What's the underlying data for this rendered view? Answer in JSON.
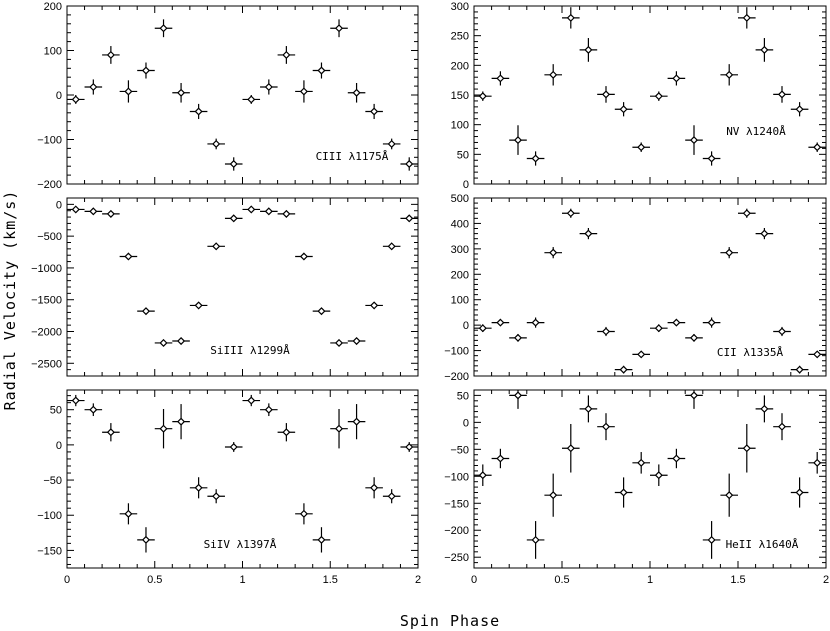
{
  "figure": {
    "xlabel": "Spin Phase",
    "ylabel": "Radial Velocity (km/s)"
  },
  "chart_data": [
    {
      "type": "scatter",
      "label": "CIII λ1175Å",
      "xlim": [
        0,
        2
      ],
      "ylim": [
        -200,
        200
      ],
      "yticks": [
        -200,
        -100,
        0,
        100,
        200
      ],
      "x": [
        0.05,
        0.15,
        0.25,
        0.35,
        0.45,
        0.55,
        0.65,
        0.75,
        0.85,
        0.95,
        1.05,
        1.15,
        1.25,
        1.35,
        1.45,
        1.55,
        1.65,
        1.75,
        1.85,
        1.95
      ],
      "y": [
        -10,
        18,
        90,
        8,
        55,
        150,
        5,
        -37,
        -110,
        -155,
        -10,
        18,
        90,
        8,
        55,
        150,
        5,
        -37,
        -110,
        -155
      ],
      "yerr": [
        10,
        17,
        20,
        25,
        18,
        20,
        22,
        17,
        12,
        15,
        10,
        17,
        20,
        25,
        18,
        20,
        22,
        17,
        12,
        15
      ]
    },
    {
      "type": "scatter",
      "label": "NV λ1240Å",
      "xlim": [
        0,
        2
      ],
      "ylim": [
        0,
        300
      ],
      "yticks": [
        0,
        50,
        100,
        150,
        200,
        250,
        300
      ],
      "x": [
        0.05,
        0.15,
        0.25,
        0.35,
        0.45,
        0.55,
        0.65,
        0.75,
        0.85,
        0.95,
        1.05,
        1.15,
        1.25,
        1.35,
        1.45,
        1.55,
        1.65,
        1.75,
        1.85,
        1.95
      ],
      "y": [
        148,
        178,
        74,
        43,
        184,
        280,
        226,
        151,
        126,
        62,
        148,
        178,
        74,
        43,
        184,
        280,
        226,
        151,
        126,
        62
      ],
      "yerr": [
        8,
        12,
        25,
        12,
        18,
        18,
        20,
        14,
        12,
        8,
        8,
        12,
        25,
        12,
        18,
        18,
        20,
        14,
        12,
        8
      ]
    },
    {
      "type": "scatter",
      "label": "SiIII λ1299Å",
      "xlim": [
        0,
        2
      ],
      "ylim": [
        -2700,
        100
      ],
      "yticks": [
        -2500,
        -2000,
        -1500,
        -1000,
        -500,
        0
      ],
      "x": [
        0.05,
        0.15,
        0.25,
        0.35,
        0.45,
        0.55,
        0.65,
        0.75,
        0.85,
        0.95,
        1.05,
        1.15,
        1.25,
        1.35,
        1.45,
        1.55,
        1.65,
        1.75,
        1.85,
        1.95
      ],
      "y": [
        -80,
        -110,
        -150,
        -820,
        -1680,
        -2180,
        -2150,
        -1590,
        -660,
        -220,
        -80,
        -110,
        -150,
        -820,
        -1680,
        -2180,
        -2150,
        -1590,
        -660,
        -220
      ],
      "yerr": [
        20,
        20,
        20,
        20,
        20,
        20,
        20,
        20,
        20,
        20,
        20,
        20,
        20,
        20,
        20,
        20,
        20,
        20,
        20,
        20
      ]
    },
    {
      "type": "scatter",
      "label": "CII λ1335Å",
      "xlim": [
        0,
        2
      ],
      "ylim": [
        -200,
        500
      ],
      "yticks": [
        -200,
        -100,
        0,
        100,
        200,
        300,
        400,
        500
      ],
      "x": [
        0.05,
        0.15,
        0.25,
        0.35,
        0.45,
        0.55,
        0.65,
        0.75,
        0.85,
        0.95,
        1.05,
        1.15,
        1.25,
        1.35,
        1.45,
        1.55,
        1.65,
        1.75,
        1.85,
        1.95
      ],
      "y": [
        -12,
        10,
        -50,
        10,
        285,
        440,
        360,
        -25,
        -175,
        -115,
        -12,
        10,
        -50,
        10,
        285,
        440,
        360,
        -25,
        -175,
        -115
      ],
      "yerr": [
        15,
        12,
        15,
        20,
        22,
        18,
        22,
        18,
        15,
        10,
        15,
        12,
        15,
        20,
        22,
        18,
        22,
        18,
        15,
        10
      ]
    },
    {
      "type": "scatter",
      "label": "SiIV λ1397Å",
      "xlim": [
        0,
        2
      ],
      "ylim": [
        -175,
        78
      ],
      "yticks": [
        -150,
        -100,
        -50,
        0,
        50
      ],
      "x": [
        0.05,
        0.15,
        0.25,
        0.35,
        0.45,
        0.55,
        0.65,
        0.75,
        0.85,
        0.95,
        1.05,
        1.15,
        1.25,
        1.35,
        1.45,
        1.55,
        1.65,
        1.75,
        1.85,
        1.95
      ],
      "y": [
        63,
        50,
        18,
        -98,
        -135,
        23,
        33,
        -61,
        -73,
        -3,
        63,
        50,
        18,
        -98,
        -135,
        23,
        33,
        -61,
        -73,
        -3
      ],
      "yerr": [
        8,
        9,
        13,
        15,
        18,
        28,
        25,
        15,
        10,
        7,
        8,
        9,
        13,
        15,
        18,
        28,
        25,
        15,
        10,
        7
      ]
    },
    {
      "type": "scatter",
      "label": "HeII λ1640Å",
      "xlim": [
        0,
        2
      ],
      "ylim": [
        -270,
        60
      ],
      "yticks": [
        -250,
        -200,
        -150,
        -100,
        -50,
        0,
        50
      ],
      "x": [
        0.05,
        0.15,
        0.25,
        0.35,
        0.45,
        0.55,
        0.65,
        0.75,
        0.85,
        0.95,
        1.05,
        1.15,
        1.25,
        1.35,
        1.45,
        1.55,
        1.65,
        1.75,
        1.85,
        1.95
      ],
      "y": [
        -98,
        -67,
        50,
        -218,
        -135,
        -48,
        25,
        -8,
        -130,
        -75,
        -98,
        -67,
        50,
        -218,
        -135,
        -48,
        25,
        -8,
        -130,
        -75
      ],
      "yerr": [
        20,
        18,
        25,
        35,
        40,
        45,
        25,
        25,
        28,
        20,
        20,
        18,
        25,
        35,
        40,
        45,
        25,
        25,
        28,
        20
      ]
    }
  ]
}
